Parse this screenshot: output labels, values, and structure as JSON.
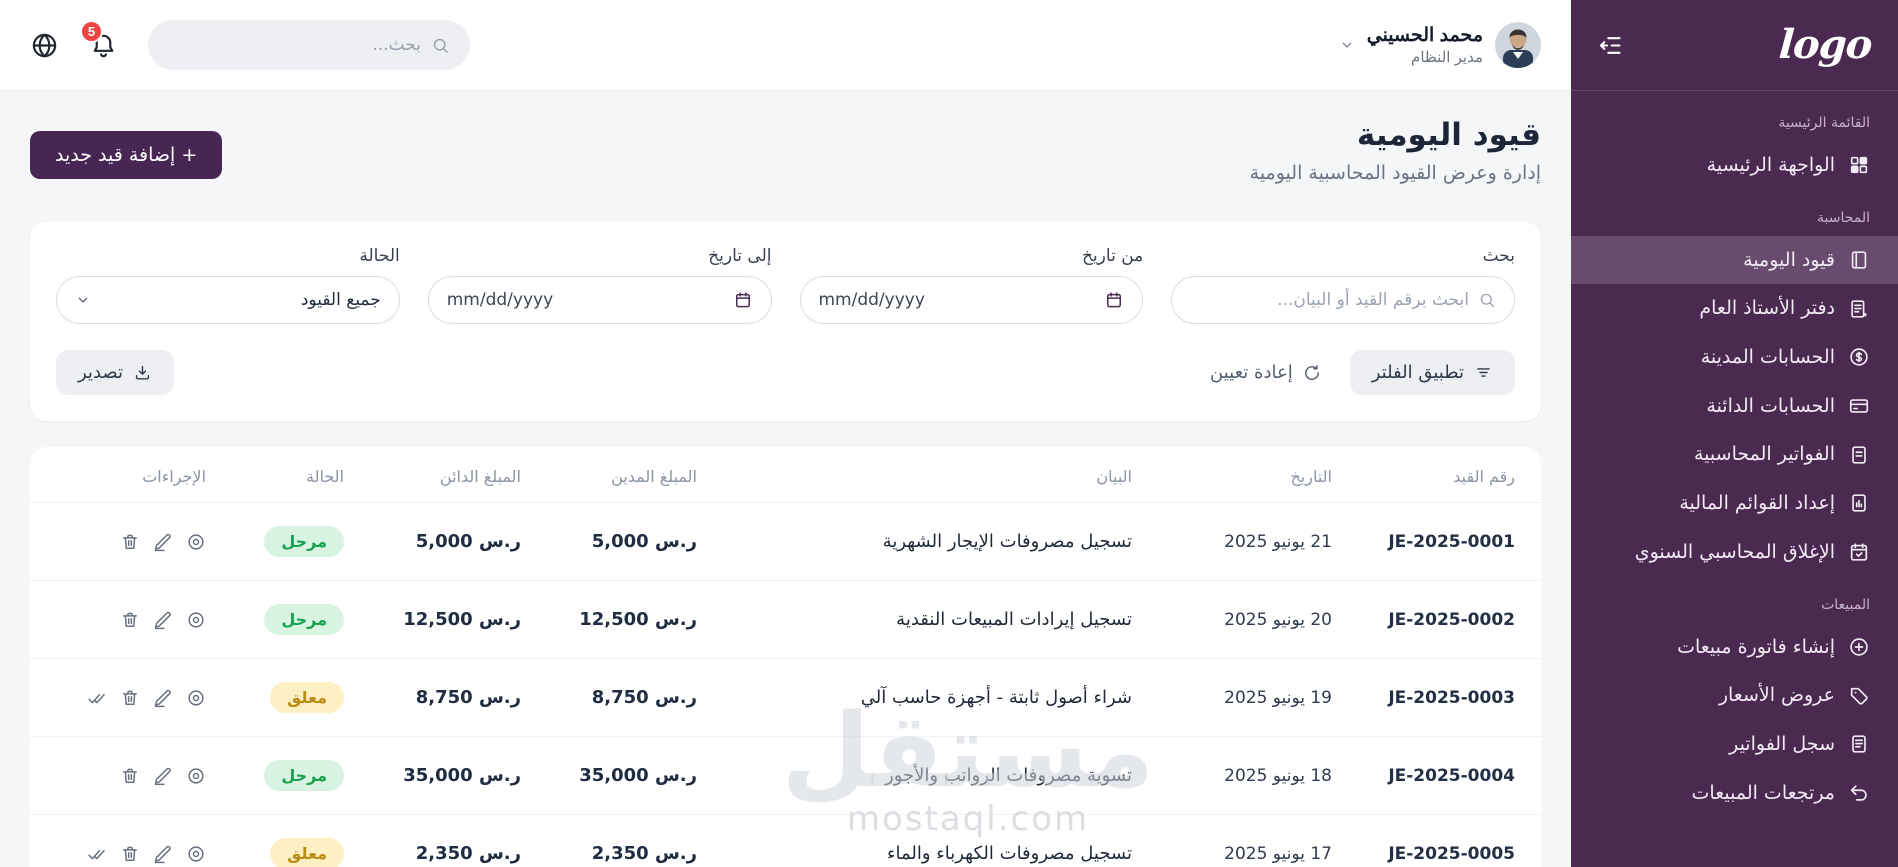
{
  "header": {
    "logo_text": "logo",
    "user_name": "محمد الحسيني",
    "user_role": "مدير النظام",
    "search_placeholder": "بحث...",
    "notification_count": "5"
  },
  "sidebar": {
    "sections": [
      {
        "label": "القائمة الرئيسية",
        "items": [
          {
            "label": "الواجهة الرئيسية",
            "icon": "dashboard-grid-icon",
            "active": false
          }
        ]
      },
      {
        "label": "المحاسبة",
        "items": [
          {
            "label": "قيود اليومية",
            "icon": "journal-icon",
            "active": true
          },
          {
            "label": "دفتر الأستاذ العام",
            "icon": "ledger-icon",
            "active": false
          },
          {
            "label": "الحسابات المدينة",
            "icon": "dollar-circle-icon",
            "active": false
          },
          {
            "label": "الحسابات الدائنة",
            "icon": "credit-card-icon",
            "active": false
          },
          {
            "label": "الفواتير المحاسبية",
            "icon": "invoice-icon",
            "active": false
          },
          {
            "label": "إعداد القوائم المالية",
            "icon": "financial-report-icon",
            "active": false
          },
          {
            "label": "الإغلاق المحاسبي السنوي",
            "icon": "calendar-check-icon",
            "active": false
          }
        ]
      },
      {
        "label": "المبيعات",
        "items": [
          {
            "label": "إنشاء فاتورة مبيعات",
            "icon": "plus-circle-icon",
            "active": false
          },
          {
            "label": "عروض الأسعار",
            "icon": "tag-icon",
            "active": false
          },
          {
            "label": "سجل الفواتير",
            "icon": "invoice-log-icon",
            "active": false
          },
          {
            "label": "مرتجعات المبيعات",
            "icon": "return-icon",
            "active": false
          }
        ]
      }
    ]
  },
  "page": {
    "title": "قيود اليومية",
    "subtitle": "إدارة وعرض القيود المحاسبية اليومية",
    "add_button_label": "+ إضافة قيد جديد"
  },
  "filters": {
    "search_label": "بحث",
    "search_placeholder": "ابحث برقم القيد أو البيان...",
    "from_label": "من تاريخ",
    "to_label": "إلى تاريخ",
    "date_placeholder": "mm/dd/yyyy",
    "status_label": "الحالة",
    "status_value": "جميع القيود",
    "apply_button": "تطبيق الفلتر",
    "reset_button": "إعادة تعيين",
    "export_button": "تصدير"
  },
  "table": {
    "headers": [
      "رقم القيد",
      "التاريخ",
      "البيان",
      "المبلغ المدين",
      "المبلغ الدائن",
      "الحالة",
      "الإجراءات"
    ],
    "rows": [
      {
        "id": "JE-2025-0001",
        "date": "21 يونيو 2025",
        "desc": "تسجيل مصروفات الإيجار الشهرية",
        "debit": "5,000 ر.س",
        "credit": "5,000 ر.س",
        "status": "مرحل",
        "status_type": "posted",
        "approvable": false
      },
      {
        "id": "JE-2025-0002",
        "date": "20 يونيو 2025",
        "desc": "تسجيل إيرادات المبيعات النقدية",
        "debit": "12,500 ر.س",
        "credit": "12,500 ر.س",
        "status": "مرحل",
        "status_type": "posted",
        "approvable": false
      },
      {
        "id": "JE-2025-0003",
        "date": "19 يونيو 2025",
        "desc": "شراء أصول ثابتة - أجهزة حاسب آلي",
        "debit": "8,750 ر.س",
        "credit": "8,750 ر.س",
        "status": "معلق",
        "status_type": "pending",
        "approvable": true
      },
      {
        "id": "JE-2025-0004",
        "date": "18 يونيو 2025",
        "desc": "تسوية مصروفات الرواتب والأجور",
        "debit": "35,000 ر.س",
        "credit": "35,000 ر.س",
        "status": "مرحل",
        "status_type": "posted",
        "approvable": false
      },
      {
        "id": "JE-2025-0005",
        "date": "17 يونيو 2025",
        "desc": "تسجيل مصروفات الكهرباء والماء",
        "debit": "2,350 ر.س",
        "credit": "2,350 ر.س",
        "status": "معلق",
        "status_type": "pending",
        "approvable": true
      }
    ]
  },
  "watermark": {
    "text": "مستقل",
    "url": "mostaql.com"
  },
  "colors": {
    "sidebar": "#4b2a52",
    "sidebar_active": "rgba(255,255,255,0.16)",
    "accent": "#482653",
    "notification": "#ef4444",
    "badge_posted_bg": "#d8f3e1",
    "badge_posted_text": "#18a14e",
    "badge_pending_bg": "#fcf0c4",
    "badge_pending_text": "#bb8a10"
  }
}
